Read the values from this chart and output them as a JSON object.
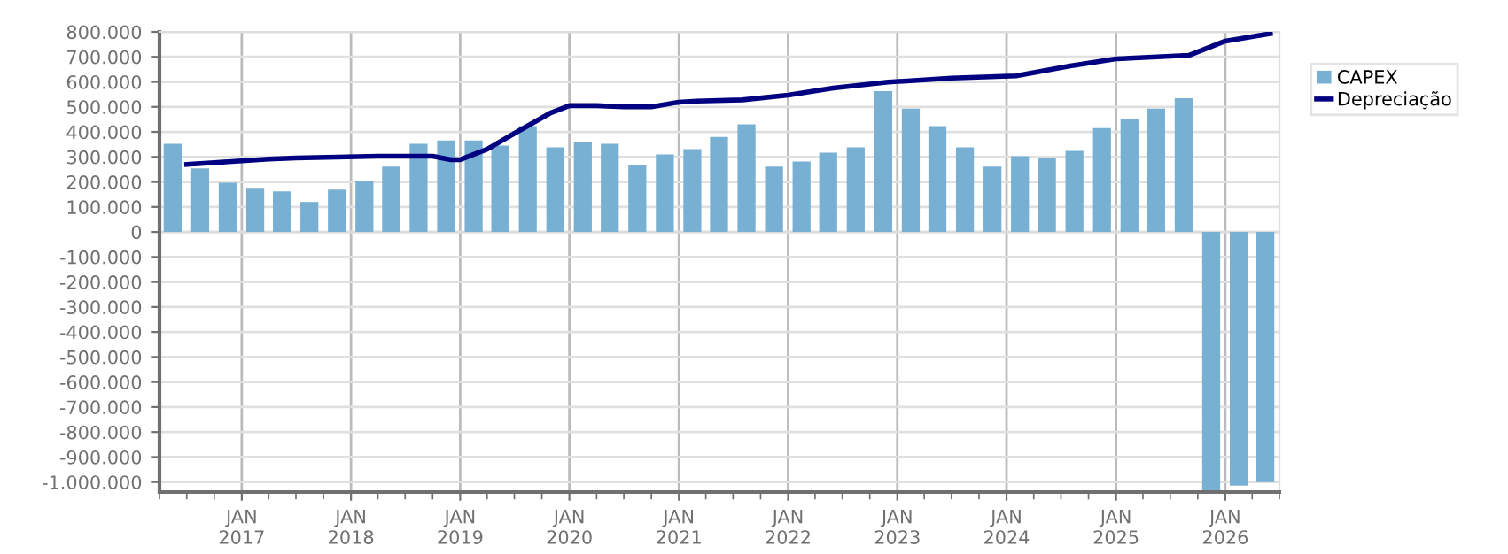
{
  "chart_data": {
    "type": "bar",
    "legend": "right",
    "grid": true,
    "xlim": [
      "2016-04-01",
      "2026-07-01"
    ],
    "xticks": [
      {
        "value": "2017-01-01",
        "label": "JAN\n2017"
      },
      {
        "value": "2018-01-01",
        "label": "JAN\n2018"
      },
      {
        "value": "2019-01-01",
        "label": "JAN\n2019"
      },
      {
        "value": "2020-01-01",
        "label": "JAN\n2020"
      },
      {
        "value": "2021-01-01",
        "label": "JAN\n2021"
      },
      {
        "value": "2022-01-01",
        "label": "JAN\n2022"
      },
      {
        "value": "2023-01-01",
        "label": "JAN\n2023"
      },
      {
        "value": "2024-01-01",
        "label": "JAN\n2024"
      },
      {
        "value": "2025-01-01",
        "label": "JAN\n2025"
      },
      {
        "value": "2026-01-01",
        "label": "JAN\n2026"
      }
    ],
    "ylim": [
      -1040000,
      800000
    ],
    "yticks": [
      {
        "value": 800000,
        "label": "800.000"
      },
      {
        "value": 700000,
        "label": "700.000"
      },
      {
        "value": 600000,
        "label": "600.000"
      },
      {
        "value": 500000,
        "label": "500.000"
      },
      {
        "value": 400000,
        "label": "400.000"
      },
      {
        "value": 300000,
        "label": "300.000"
      },
      {
        "value": 200000,
        "label": "200.000"
      },
      {
        "value": 100000,
        "label": "100.000"
      },
      0,
      {
        "value": -100000,
        "label": "-100.000"
      },
      {
        "value": -200000,
        "label": "-200.000"
      },
      {
        "value": -300000,
        "label": "-300.000"
      },
      {
        "value": -400000,
        "label": "-400.000"
      },
      {
        "value": -500000,
        "label": "-500.000"
      },
      {
        "value": -600000,
        "label": "-600.000"
      },
      {
        "value": -700000,
        "label": "-700.000"
      },
      {
        "value": -800000,
        "label": "-800.000"
      },
      {
        "value": -900000,
        "label": "-900.000"
      },
      {
        "value": -1000000,
        "label": "-1.000.000"
      }
    ],
    "series": [
      {
        "name": "CAPEX",
        "color": "#78b0d3",
        "x": [
          "2016-05-15",
          "2016-08-15",
          "2016-11-15",
          "2017-02-15",
          "2017-05-15",
          "2017-08-15",
          "2017-11-15",
          "2018-02-15",
          "2018-05-15",
          "2018-08-15",
          "2018-11-15",
          "2019-02-15",
          "2019-05-15",
          "2019-08-15",
          "2019-11-15",
          "2020-02-15",
          "2020-05-15",
          "2020-08-15",
          "2020-11-15",
          "2021-02-15",
          "2021-05-15",
          "2021-08-15",
          "2021-11-15",
          "2022-02-15",
          "2022-05-15",
          "2022-08-15",
          "2022-11-15",
          "2023-02-15",
          "2023-05-15",
          "2023-08-15",
          "2023-11-15",
          "2024-02-15",
          "2024-05-15",
          "2024-08-15",
          "2024-11-15",
          "2025-02-15",
          "2025-05-15",
          "2025-08-15",
          "2025-11-15",
          "2026-02-15",
          "2026-05-15"
        ],
        "values": [
          352000,
          254000,
          197000,
          176000,
          162000,
          120000,
          169000,
          204000,
          261000,
          352000,
          366000,
          366000,
          345000,
          423000,
          338000,
          359000,
          352000,
          268000,
          310000,
          331000,
          380000,
          430000,
          261000,
          282000,
          317000,
          338000,
          563000,
          493000,
          423000,
          338000,
          261000,
          303000,
          296000,
          324000,
          415000,
          451000,
          493000,
          535000,
          -1035000,
          -1014000,
          -1000000
        ]
      },
      {
        "name": "Depreciação",
        "type": "line",
        "color": "#000080",
        "x": [
          "2016-07-01",
          "2016-10-01",
          "2017-01-01",
          "2017-04-01",
          "2017-07-01",
          "2018-04-01",
          "2018-10-01",
          "2018-12-01",
          "2019-01-01",
          "2019-04-01",
          "2019-07-01",
          "2019-11-01",
          "2020-01-01",
          "2020-04-01",
          "2020-07-01",
          "2020-10-01",
          "2021-01-01",
          "2021-03-01",
          "2021-08-01",
          "2022-01-01",
          "2022-06-01",
          "2022-12-01",
          "2023-07-01",
          "2024-02-01",
          "2024-08-01",
          "2025-01-01",
          "2025-09-01",
          "2026-01-01",
          "2026-06-01"
        ],
        "values": [
          270000,
          277000,
          284000,
          291000,
          296000,
          303000,
          303000,
          289000,
          289000,
          331000,
          394000,
          477000,
          505000,
          505000,
          500000,
          500000,
          519000,
          523000,
          528000,
          547000,
          575000,
          599000,
          615000,
          624000,
          664000,
          692000,
          706000,
          763000,
          793000
        ]
      }
    ]
  }
}
